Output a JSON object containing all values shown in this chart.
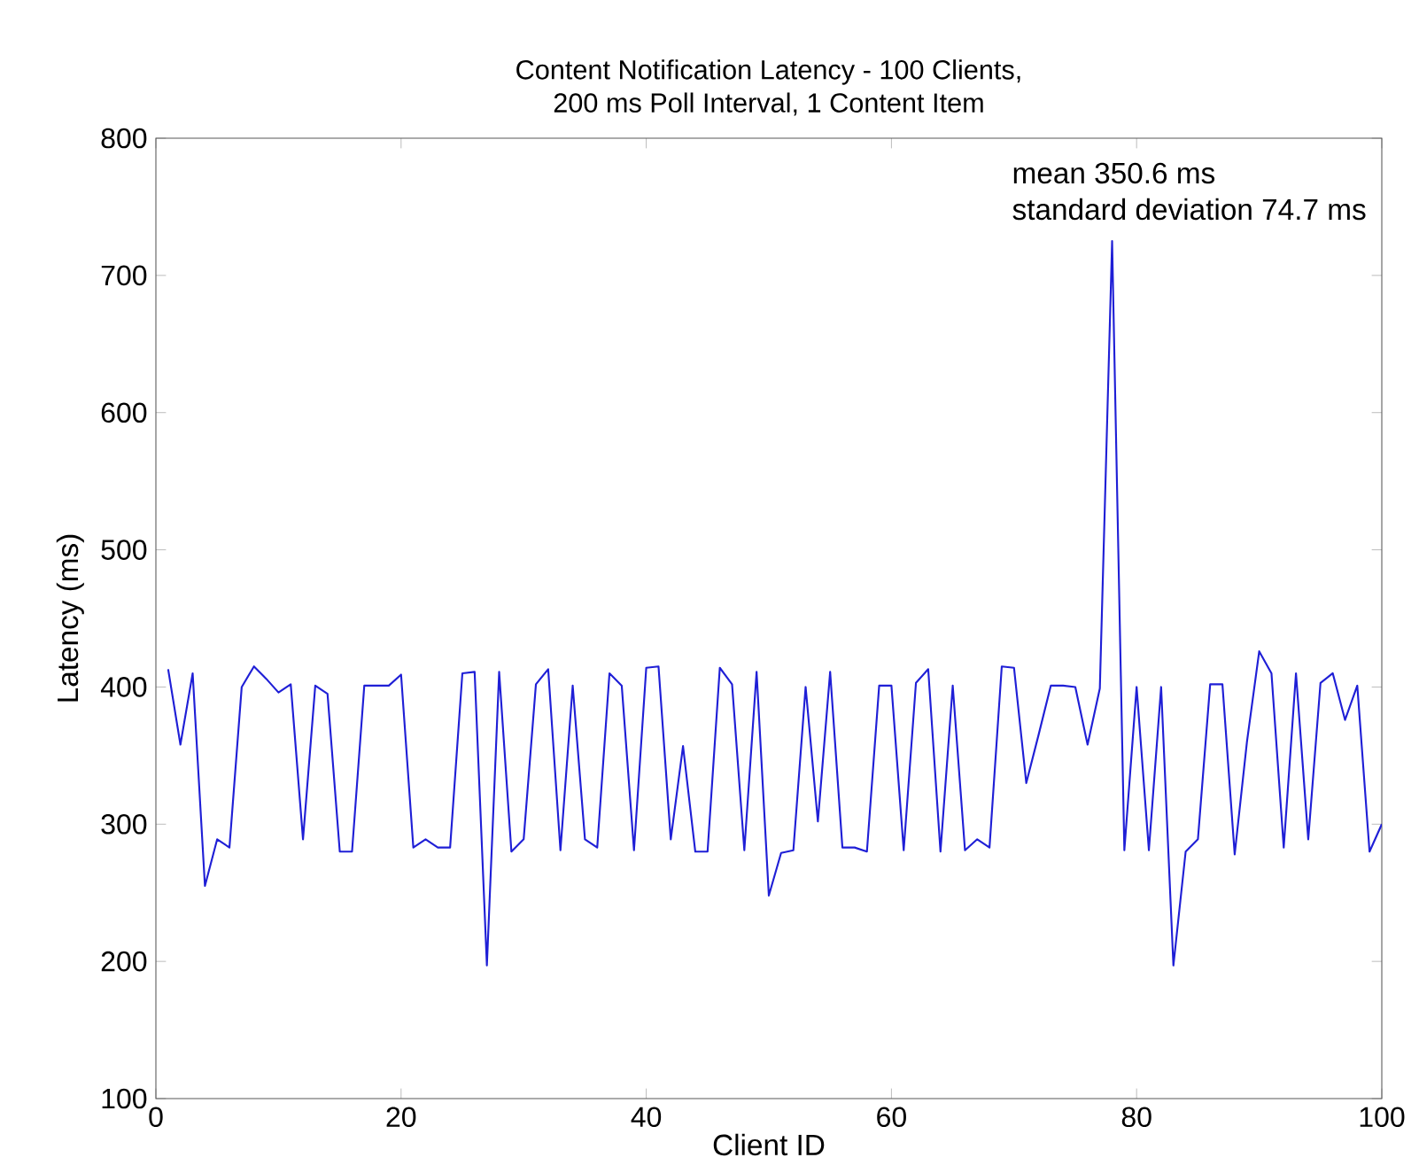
{
  "chart_data": {
    "type": "line",
    "title": "Content Notification Latency - 100 Clients,\n200 ms Poll Interval, 1 Content Item",
    "xlabel": "Client ID",
    "ylabel": "Latency (ms)",
    "annotations": [
      "mean 350.6 ms",
      "standard deviation 74.7 ms"
    ],
    "x": [
      1,
      2,
      3,
      4,
      5,
      6,
      7,
      8,
      9,
      10,
      11,
      12,
      13,
      14,
      15,
      16,
      17,
      18,
      19,
      20,
      21,
      22,
      23,
      24,
      25,
      26,
      27,
      28,
      29,
      30,
      31,
      32,
      33,
      34,
      35,
      36,
      37,
      38,
      39,
      40,
      41,
      42,
      43,
      44,
      45,
      46,
      47,
      48,
      49,
      50,
      51,
      52,
      53,
      54,
      55,
      56,
      57,
      58,
      59,
      60,
      61,
      62,
      63,
      64,
      65,
      66,
      67,
      68,
      69,
      70,
      71,
      72,
      73,
      74,
      75,
      76,
      77,
      78,
      79,
      80,
      81,
      82,
      83,
      84,
      85,
      86,
      87,
      88,
      89,
      90,
      91,
      92,
      93,
      94,
      95,
      96,
      97,
      98,
      99,
      100
    ],
    "series": [
      {
        "color": "#1f1fd6",
        "values": [
          413,
          358,
          410,
          255,
          289,
          283,
          400,
          415,
          406,
          396,
          402,
          289,
          401,
          395,
          280,
          280,
          401,
          401,
          401,
          409,
          283,
          289,
          283,
          283,
          410,
          411,
          197,
          411,
          280,
          289,
          402,
          413,
          281,
          401,
          289,
          283,
          410,
          401,
          281,
          414,
          415,
          289,
          357,
          280,
          280,
          414,
          402,
          281,
          411,
          248,
          279,
          281,
          400,
          302,
          411,
          283,
          283,
          280,
          401,
          401,
          281,
          403,
          413,
          280,
          401,
          281,
          289,
          283,
          415,
          414,
          330,
          365,
          401,
          401,
          400,
          358,
          399,
          725,
          281,
          400,
          281,
          400,
          197,
          280,
          289,
          402,
          402,
          278,
          360,
          426,
          410,
          283,
          410,
          289,
          403,
          410,
          376,
          401,
          280,
          300
        ]
      }
    ],
    "xlim": [
      0,
      100
    ],
    "ylim": [
      100,
      800
    ],
    "xticks": [
      0,
      20,
      40,
      60,
      80,
      100
    ],
    "yticks": [
      100,
      200,
      300,
      400,
      500,
      600,
      700,
      800
    ],
    "grid": false,
    "marker": "none",
    "line_style": "solid"
  }
}
